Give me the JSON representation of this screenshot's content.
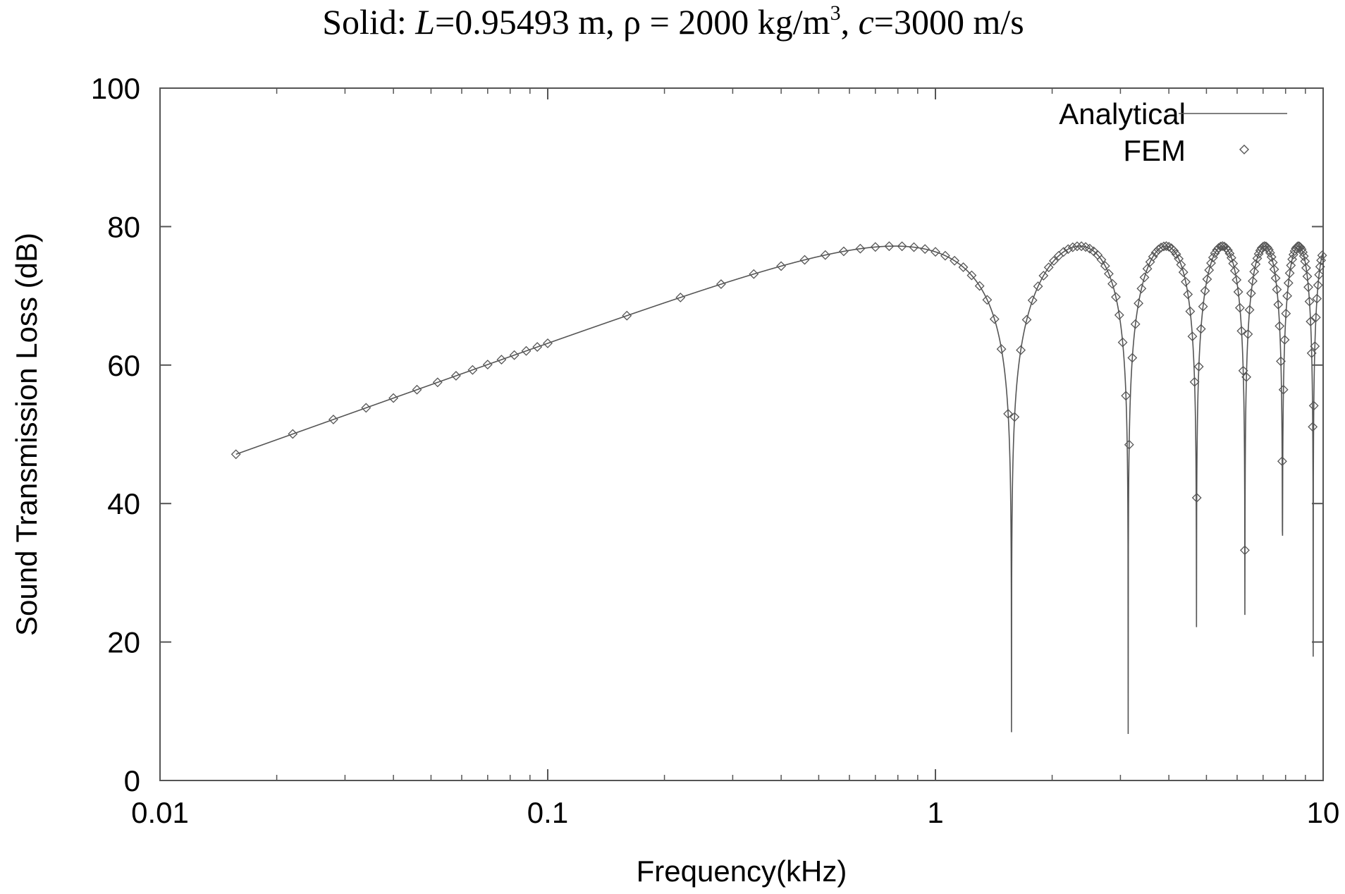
{
  "chart_data": {
    "type": "line",
    "title": {
      "prefix": "Solid: ",
      "l_symbol": "L",
      "l_value": "=0.95493 m, ρ = 2000 kg/m",
      "superscript": "3",
      "mid": ", ",
      "c_symbol": "c",
      "c_value": "=3000 m/s"
    },
    "xlabel": "Frequency(kHz)",
    "ylabel": "Sound Transmission Loss (dB)",
    "x_scale": "log",
    "xlim": [
      0.01,
      10
    ],
    "ylim": [
      0,
      100
    ],
    "x_ticks": [
      0.01,
      0.1,
      1,
      10
    ],
    "x_tick_labels": [
      "0.01",
      "0.1",
      "1",
      "10"
    ],
    "y_ticks": [
      0,
      20,
      40,
      60,
      80,
      100
    ],
    "y_tick_labels": [
      "0",
      "20",
      "40",
      "60",
      "80",
      "100"
    ],
    "legend_position": "top-right",
    "grid": false,
    "analytical_model": {
      "thickness_m": 0.95493,
      "density_kg_m3": 2000,
      "sound_speed_m_s": 3000
    },
    "series": [
      {
        "name": "Analytical",
        "style": "line",
        "color": "#555555"
      },
      {
        "name": "FEM",
        "style": "diamond",
        "color": "#555555",
        "x": [
          0.0157,
          0.022,
          0.028,
          0.034,
          0.04,
          0.046,
          0.052,
          0.058,
          0.064,
          0.07,
          0.076,
          0.082,
          0.088,
          0.094,
          0.1,
          0.16,
          0.22,
          0.28,
          0.34,
          0.4,
          0.46,
          0.52,
          0.58,
          0.64,
          0.7,
          0.76,
          0.82,
          0.88,
          0.94,
          1.0,
          1.06,
          1.12,
          1.18,
          1.24,
          1.3,
          1.36,
          1.42,
          1.48,
          1.54,
          1.6,
          1.66,
          1.72,
          1.78,
          1.84,
          1.9,
          1.96,
          2.02,
          2.08,
          2.14,
          2.2,
          2.26,
          2.32,
          2.38,
          2.44,
          2.5,
          2.56,
          2.62,
          2.68,
          2.74,
          2.8,
          2.86,
          2.92,
          2.98,
          3.04,
          3.1,
          3.16,
          3.22,
          3.28,
          3.34,
          3.4,
          3.46,
          3.52,
          3.58,
          3.64,
          3.7,
          3.76,
          3.82,
          3.88,
          3.94,
          4.0,
          4.06,
          4.12,
          4.18,
          4.24,
          4.3,
          4.36,
          4.42,
          4.48,
          4.54,
          4.6,
          4.66,
          4.72,
          4.78,
          4.84,
          4.9,
          4.96,
          5.02,
          5.08,
          5.14,
          5.2,
          5.26,
          5.32,
          5.38,
          5.44,
          5.5,
          5.56,
          5.62,
          5.68,
          5.74,
          5.8,
          5.86,
          5.92,
          5.98,
          6.04,
          6.1,
          6.16,
          6.22,
          6.28,
          6.34,
          6.4,
          6.46,
          6.52,
          6.58,
          6.64,
          6.7,
          6.76,
          6.82,
          6.88,
          6.94,
          7.0,
          7.06,
          7.12,
          7.18,
          7.24,
          7.3,
          7.36,
          7.42,
          7.48,
          7.54,
          7.6,
          7.66,
          7.72,
          7.78,
          7.84,
          7.9,
          7.96,
          8.02,
          8.08,
          8.14,
          8.2,
          8.26,
          8.32,
          8.38,
          8.44,
          8.5,
          8.56,
          8.62,
          8.68,
          8.74,
          8.8,
          8.86,
          8.92,
          8.98,
          9.04,
          9.1,
          9.16,
          9.22,
          9.28,
          9.34,
          9.4,
          9.46,
          9.52,
          9.58,
          9.64,
          9.7,
          9.76,
          9.82,
          9.88,
          9.94
        ]
      }
    ]
  }
}
